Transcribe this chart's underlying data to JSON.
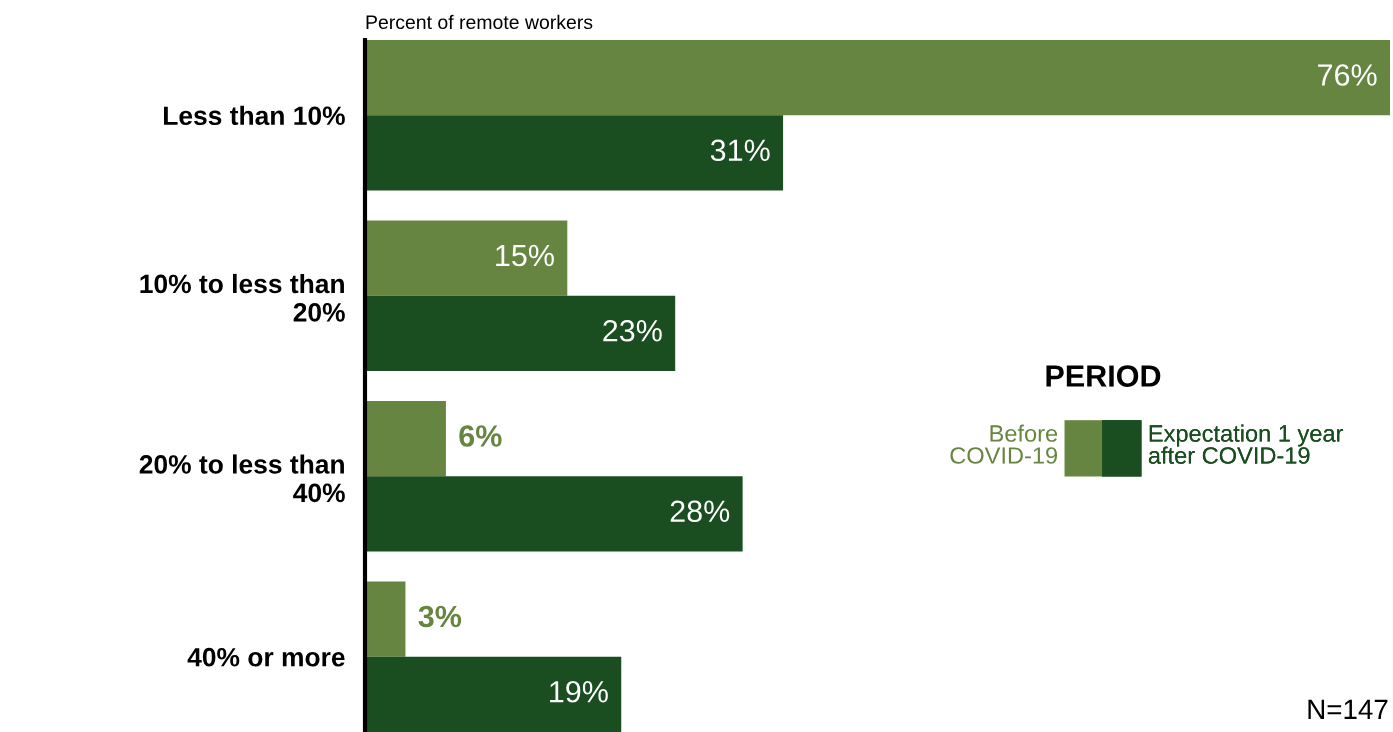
{
  "chart_data": {
    "type": "bar",
    "orientation": "horizontal",
    "title": "Percent of remote workers",
    "categories": [
      "Less than 10%",
      "10% to less than 20%",
      "20% to less than 40%",
      "40% or more"
    ],
    "series": [
      {
        "name": "Before COVID-19",
        "color": "#668540",
        "values": [
          76,
          15,
          6,
          3
        ],
        "value_labels": [
          "76%",
          "15%",
          "6%",
          "3%"
        ]
      },
      {
        "name": "Expectation 1 year after COVID-19",
        "color": "#1a4e20",
        "values": [
          31,
          23,
          28,
          19
        ],
        "value_labels": [
          "31%",
          "23%",
          "28%",
          "19%"
        ]
      }
    ],
    "xlim": [
      0,
      76
    ],
    "tick_labels": "y",
    "legend": "right",
    "legend_title": "PERIOD",
    "grid": false,
    "annotations": [
      "N=147"
    ]
  }
}
